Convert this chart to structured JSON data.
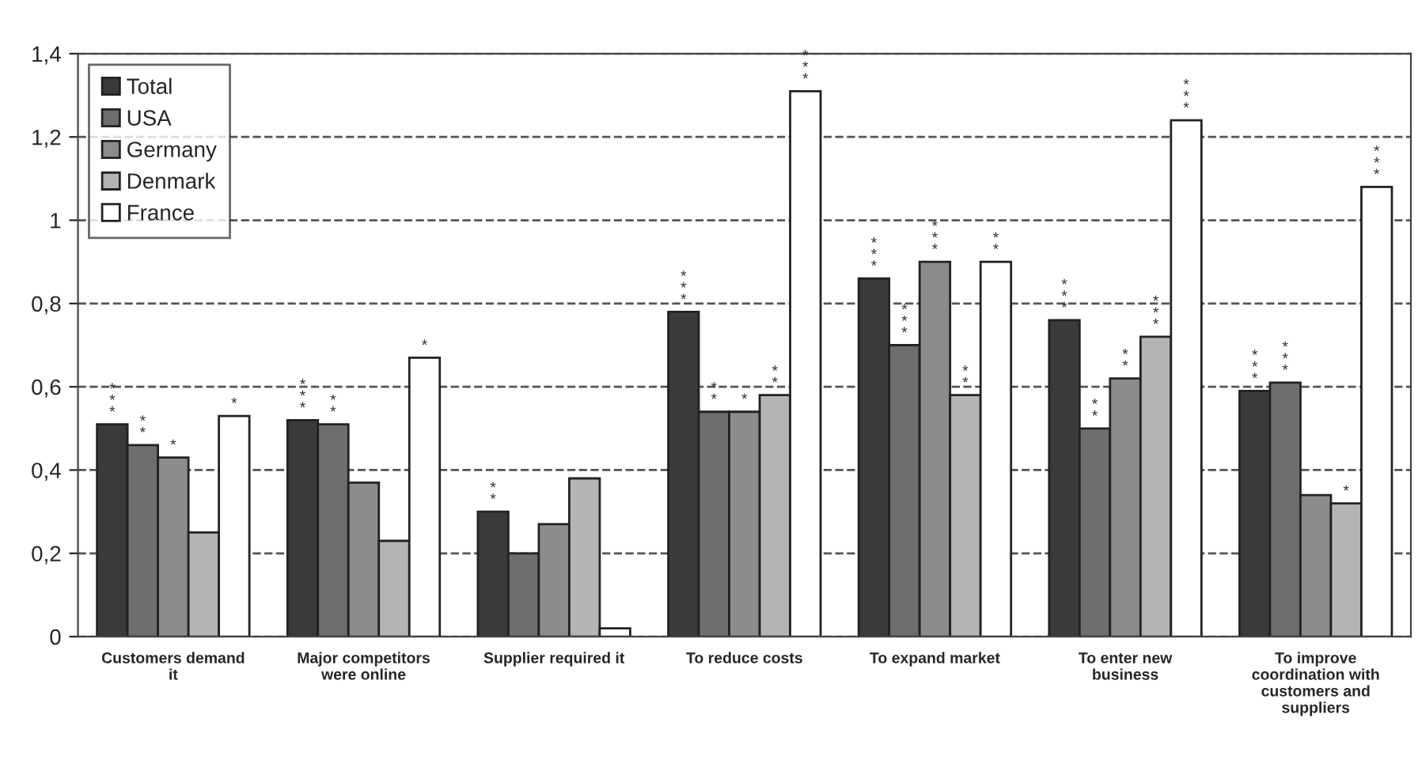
{
  "chart_data": {
    "type": "bar",
    "categories": [
      "Customers demand\nit",
      "Major competitors\nwere online",
      "Supplier required it",
      "To reduce costs",
      "To expand market",
      "To enter new\nbusiness",
      "To improve\ncoordination with\ncustomers and\nsuppliers"
    ],
    "series": [
      {
        "name": "Total",
        "color": "#3a3a3a",
        "values": [
          0.51,
          0.52,
          0.3,
          0.78,
          0.86,
          0.76,
          0.59
        ],
        "value_labels": [
          "***",
          "***",
          "**",
          "***",
          "***",
          "***",
          "***"
        ]
      },
      {
        "name": "USA",
        "color": "#6e6e6e",
        "values": [
          0.46,
          0.51,
          0.2,
          0.54,
          0.7,
          0.5,
          0.61
        ],
        "value_labels": [
          "**",
          "**",
          null,
          "**",
          "***",
          "**",
          "***"
        ]
      },
      {
        "name": "Germany",
        "color": "#8c8c8c",
        "values": [
          0.43,
          0.37,
          0.27,
          0.54,
          0.9,
          0.62,
          0.34
        ],
        "value_labels": [
          "*",
          null,
          null,
          "*",
          "***",
          "**",
          null
        ]
      },
      {
        "name": "Denmark",
        "color": "#b4b4b4",
        "values": [
          0.25,
          0.23,
          0.38,
          0.58,
          0.58,
          0.72,
          0.32
        ],
        "value_labels": [
          null,
          null,
          null,
          "**",
          "**",
          "***",
          "*"
        ]
      },
      {
        "name": "France",
        "color": "#ffffff",
        "values": [
          0.53,
          0.67,
          0.02,
          1.31,
          0.9,
          1.24,
          1.08
        ],
        "value_labels": [
          "*",
          "*",
          null,
          "***",
          "**",
          "***",
          "***"
        ]
      }
    ],
    "ylim": [
      0,
      1.4
    ],
    "yticks": [
      0,
      {
        "value": 0.2,
        "label": "0,2"
      },
      {
        "value": 0.4,
        "label": "0,4"
      },
      {
        "value": 0.6,
        "label": "0,6"
      },
      {
        "value": 0.8,
        "label": "0,8"
      },
      1,
      {
        "value": 1.2,
        "label": "1,2"
      },
      {
        "value": 1.4,
        "label": "1,4"
      }
    ],
    "grid": "y",
    "legend": "top left"
  }
}
